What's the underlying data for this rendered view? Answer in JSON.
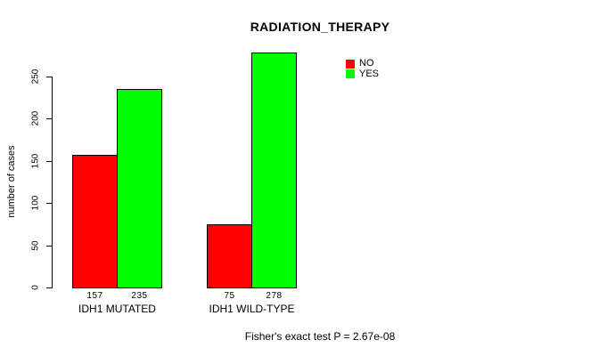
{
  "chart_data": {
    "type": "bar",
    "title": "RADIATION_THERAPY",
    "categories": [
      "IDH1 MUTATED",
      "IDH1 WILD-TYPE"
    ],
    "series": [
      {
        "name": "NO",
        "color": "#ff0000",
        "values": [
          157,
          75
        ]
      },
      {
        "name": "YES",
        "color": "#00ff00",
        "values": [
          235,
          278
        ]
      }
    ],
    "xlabel": "",
    "ylabel": "number of cases",
    "yticks": [
      0,
      50,
      100,
      150,
      200,
      250
    ],
    "ylim": [
      0,
      280
    ],
    "grid": false,
    "bar_value_labels_shown": true,
    "legend_position": "topright",
    "legend_entries": [
      "NO",
      "YES"
    ],
    "footnote": "Fisher's exact test P = 2.67e-08"
  },
  "colors": {
    "background": "#ffffff",
    "text": "#000000",
    "bar_border": "#000000",
    "no": "#ff0000",
    "yes": "#00ff00"
  }
}
